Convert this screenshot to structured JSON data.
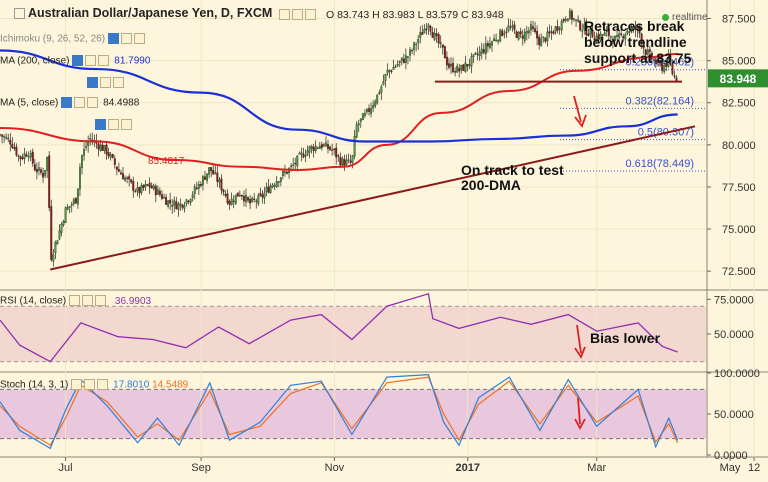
{
  "header": {
    "title": "Australian Dollar/Japanese Yen, D, FXCM",
    "ohlc": "O 83.743  H 83.983  L 83.579  C 83.948",
    "realtime": "realtime"
  },
  "indicators": {
    "ichimoku": "Ichimoku (9, 26, 52, 26)",
    "ma200": "MA (200, close)",
    "ma200_value": "81.7990",
    "ma5": "MA (5, close)",
    "ma5_value": "84.4988",
    "ma100_value": "85.4817",
    "rsi": "RSI (14, close)",
    "rsi_value": "36.9903",
    "stoch": "Stoch (14, 3, 1)",
    "stoch_k": "17.8010",
    "stoch_d": "14.5489"
  },
  "annotations": {
    "retrace": [
      "Retraces break",
      "below trendline",
      "support at 83.75"
    ],
    "ontrack": [
      "On track to test",
      "200-DMA"
    ],
    "bias": "Bias lower"
  },
  "price_badge": "83.948",
  "colors": {
    "background": "#fdf6dc",
    "candle_up": "#4a9a3a",
    "candle_down": "#8b1a1a",
    "ma200": "#1a2fd6",
    "ma100": "#e02020",
    "trendline": "#8b1a1a",
    "fib": "#3a4fd0",
    "rsi_line": "#8e2fb0",
    "rsi_band": "#f3d8d0",
    "stoch_band": "#e9c7dc",
    "stoch_k": "#2f7fd6",
    "stoch_d": "#f07020",
    "arrow": "#e02020"
  },
  "chart_data": [
    {
      "type": "candlestick",
      "title": "Australian Dollar/Japanese Yen, D, FXCM",
      "ylim": [
        71.5,
        88.6
      ],
      "yticks": [
        "87.500",
        "85.000",
        "82.500",
        "80.000",
        "77.500",
        "75.000",
        "72.500"
      ],
      "xticks": [
        "Jul",
        "Sep",
        "Nov",
        "2017",
        "Mar",
        "May",
        "12"
      ],
      "ohlc": {
        "open": 83.743,
        "high": 83.983,
        "low": 83.579,
        "close": 83.948
      },
      "fib_levels": [
        {
          "label": "0.236(84.462)",
          "value": 84.462
        },
        {
          "label": "0.382(82.164)",
          "value": 82.164
        },
        {
          "label": "0.5(80.307)",
          "value": 80.307
        },
        {
          "label": "0.618(78.449)",
          "value": 78.449
        }
      ],
      "close_path": [
        [
          "2016-06-01",
          80.6
        ],
        [
          "2016-06-06",
          80.2
        ],
        [
          "2016-06-10",
          79.2
        ],
        [
          "2016-06-14",
          79.6
        ],
        [
          "2016-06-17",
          78.6
        ],
        [
          "2016-06-21",
          78.2
        ],
        [
          "2016-06-23",
          79.5
        ],
        [
          "2016-06-24",
          73.2
        ],
        [
          "2016-06-28",
          74.8
        ],
        [
          "2016-07-01",
          76.1
        ],
        [
          "2016-07-06",
          76.8
        ],
        [
          "2016-07-08",
          79.2
        ],
        [
          "2016-07-12",
          80.4
        ],
        [
          "2016-07-15",
          80.1
        ],
        [
          "2016-07-20",
          79.6
        ],
        [
          "2016-07-25",
          78.5
        ],
        [
          "2016-07-29",
          77.9
        ],
        [
          "2016-08-03",
          77.2
        ],
        [
          "2016-08-08",
          77.6
        ],
        [
          "2016-08-12",
          77.2
        ],
        [
          "2016-08-17",
          76.6
        ],
        [
          "2016-08-22",
          76.4
        ],
        [
          "2016-08-26",
          76.8
        ],
        [
          "2016-08-31",
          77.6
        ],
        [
          "2016-09-05",
          78.6
        ],
        [
          "2016-09-09",
          77.8
        ],
        [
          "2016-09-14",
          76.6
        ],
        [
          "2016-09-19",
          77.2
        ],
        [
          "2016-09-23",
          76.5
        ],
        [
          "2016-09-28",
          76.8
        ],
        [
          "2016-10-03",
          77.6
        ],
        [
          "2016-10-07",
          78.1
        ],
        [
          "2016-10-12",
          78.6
        ],
        [
          "2016-10-17",
          79.4
        ],
        [
          "2016-10-21",
          79.8
        ],
        [
          "2016-10-26",
          80.0
        ],
        [
          "2016-10-31",
          79.7
        ],
        [
          "2016-11-04",
          79.0
        ],
        [
          "2016-11-09",
          78.9
        ],
        [
          "2016-11-11",
          81.1
        ],
        [
          "2016-11-16",
          81.9
        ],
        [
          "2016-11-21",
          83.0
        ],
        [
          "2016-11-25",
          84.3
        ],
        [
          "2016-11-30",
          84.8
        ],
        [
          "2016-12-05",
          85.3
        ],
        [
          "2016-12-09",
          86.2
        ],
        [
          "2016-12-14",
          87.3
        ],
        [
          "2016-12-16",
          86.6
        ],
        [
          "2016-12-21",
          85.5
        ],
        [
          "2016-12-23",
          84.7
        ],
        [
          "2016-12-28",
          84.4
        ],
        [
          "2017-01-02",
          84.9
        ],
        [
          "2017-01-06",
          85.4
        ],
        [
          "2017-01-11",
          86.0
        ],
        [
          "2017-01-16",
          86.6
        ],
        [
          "2017-01-20",
          87.0
        ],
        [
          "2017-01-25",
          86.4
        ],
        [
          "2017-01-30",
          86.9
        ],
        [
          "2017-02-03",
          86.1
        ],
        [
          "2017-02-08",
          86.6
        ],
        [
          "2017-02-13",
          87.3
        ],
        [
          "2017-02-16",
          87.8
        ],
        [
          "2017-02-21",
          87.1
        ],
        [
          "2017-02-24",
          86.8
        ],
        [
          "2017-03-01",
          86.4
        ],
        [
          "2017-03-06",
          86.6
        ],
        [
          "2017-03-10",
          86.2
        ],
        [
          "2017-03-15",
          86.8
        ],
        [
          "2017-03-20",
          86.9
        ],
        [
          "2017-03-23",
          85.6
        ],
        [
          "2017-03-28",
          84.9
        ],
        [
          "2017-03-31",
          84.6
        ],
        [
          "2017-04-03",
          85.0
        ],
        [
          "2017-04-05",
          84.1
        ],
        [
          "2017-04-07",
          83.95
        ]
      ],
      "ma200_path": [
        [
          "2016-06-01",
          85.6
        ],
        [
          "2016-07-15",
          84.5
        ],
        [
          "2016-09-01",
          83.1
        ],
        [
          "2016-10-15",
          80.9
        ],
        [
          "2016-11-15",
          80.2
        ],
        [
          "2016-12-15",
          80.2
        ],
        [
          "2017-01-15",
          80.35
        ],
        [
          "2017-02-15",
          80.55
        ],
        [
          "2017-03-15",
          81.1
        ],
        [
          "2017-04-07",
          81.8
        ]
      ],
      "ma100_path": [
        [
          "2016-06-01",
          81.0
        ],
        [
          "2016-07-15",
          80.2
        ],
        [
          "2016-08-20",
          79.1
        ],
        [
          "2016-09-20",
          78.7
        ],
        [
          "2016-10-15",
          78.5
        ],
        [
          "2016-11-05",
          78.7
        ],
        [
          "2016-11-25",
          80.0
        ],
        [
          "2016-12-20",
          81.9
        ],
        [
          "2017-01-20",
          83.2
        ],
        [
          "2017-02-20",
          84.4
        ],
        [
          "2017-03-25",
          85.2
        ],
        [
          "2017-04-07",
          85.4
        ]
      ],
      "trendline": [
        [
          "2016-06-24",
          72.6
        ],
        [
          "2017-04-15",
          81.1
        ]
      ],
      "horizontal_support": {
        "value": 83.75,
        "from": "2016-12-17",
        "to": "2017-04-09"
      }
    },
    {
      "type": "line",
      "title": "RSI (14, close)",
      "ylim": [
        24,
        81
      ],
      "yticks": [
        "75.0000",
        "50.0000"
      ],
      "band": [
        30,
        70
      ],
      "latest": 36.9903,
      "path": [
        [
          "2016-06-01",
          60
        ],
        [
          "2016-06-10",
          42
        ],
        [
          "2016-06-24",
          30
        ],
        [
          "2016-07-08",
          58
        ],
        [
          "2016-07-25",
          48
        ],
        [
          "2016-08-10",
          46
        ],
        [
          "2016-08-25",
          40
        ],
        [
          "2016-09-09",
          55
        ],
        [
          "2016-09-23",
          43
        ],
        [
          "2016-10-12",
          60
        ],
        [
          "2016-10-26",
          64
        ],
        [
          "2016-11-09",
          46
        ],
        [
          "2016-11-25",
          70
        ],
        [
          "2016-12-14",
          79
        ],
        [
          "2016-12-16",
          61
        ],
        [
          "2016-12-28",
          54
        ],
        [
          "2017-01-16",
          62
        ],
        [
          "2017-01-30",
          57
        ],
        [
          "2017-02-16",
          64
        ],
        [
          "2017-03-01",
          52
        ],
        [
          "2017-03-20",
          58
        ],
        [
          "2017-03-31",
          41
        ],
        [
          "2017-04-07",
          37
        ]
      ]
    },
    {
      "type": "line",
      "title": "Stoch (14, 3, 1)",
      "ylim": [
        0,
        100
      ],
      "yticks": [
        "100.0000",
        "50.0000",
        "0.0000"
      ],
      "band": [
        20,
        80
      ],
      "series": [
        {
          "name": "%K",
          "latest": 17.801,
          "path": [
            [
              "2016-06-01",
              65
            ],
            [
              "2016-06-10",
              30
            ],
            [
              "2016-06-24",
              8
            ],
            [
              "2016-07-01",
              55
            ],
            [
              "2016-07-08",
              92
            ],
            [
              "2016-07-20",
              60
            ],
            [
              "2016-08-03",
              15
            ],
            [
              "2016-08-12",
              45
            ],
            [
              "2016-08-22",
              12
            ],
            [
              "2016-09-05",
              88
            ],
            [
              "2016-09-14",
              18
            ],
            [
              "2016-09-28",
              40
            ],
            [
              "2016-10-12",
              85
            ],
            [
              "2016-10-26",
              90
            ],
            [
              "2016-11-09",
              25
            ],
            [
              "2016-11-25",
              95
            ],
            [
              "2016-12-14",
              98
            ],
            [
              "2016-12-21",
              40
            ],
            [
              "2016-12-28",
              12
            ],
            [
              "2017-01-06",
              70
            ],
            [
              "2017-01-20",
              95
            ],
            [
              "2017-02-03",
              30
            ],
            [
              "2017-02-16",
              92
            ],
            [
              "2017-03-01",
              35
            ],
            [
              "2017-03-20",
              80
            ],
            [
              "2017-03-28",
              10
            ],
            [
              "2017-04-03",
              45
            ],
            [
              "2017-04-07",
              18
            ]
          ]
        },
        {
          "name": "%D",
          "latest": 14.5489,
          "path": [
            [
              "2016-06-01",
              60
            ],
            [
              "2016-06-10",
              35
            ],
            [
              "2016-06-24",
              12
            ],
            [
              "2016-07-01",
              45
            ],
            [
              "2016-07-08",
              85
            ],
            [
              "2016-07-20",
              65
            ],
            [
              "2016-08-03",
              22
            ],
            [
              "2016-08-12",
              38
            ],
            [
              "2016-08-22",
              18
            ],
            [
              "2016-09-05",
              78
            ],
            [
              "2016-09-14",
              25
            ],
            [
              "2016-09-28",
              35
            ],
            [
              "2016-10-12",
              75
            ],
            [
              "2016-10-26",
              88
            ],
            [
              "2016-11-09",
              32
            ],
            [
              "2016-11-25",
              88
            ],
            [
              "2016-12-14",
              95
            ],
            [
              "2016-12-21",
              50
            ],
            [
              "2016-12-28",
              18
            ],
            [
              "2017-01-06",
              62
            ],
            [
              "2017-01-20",
              90
            ],
            [
              "2017-02-03",
              38
            ],
            [
              "2017-02-16",
              85
            ],
            [
              "2017-03-01",
              40
            ],
            [
              "2017-03-20",
              72
            ],
            [
              "2017-03-28",
              16
            ],
            [
              "2017-04-03",
              38
            ],
            [
              "2017-04-07",
              15
            ]
          ]
        }
      ]
    }
  ]
}
